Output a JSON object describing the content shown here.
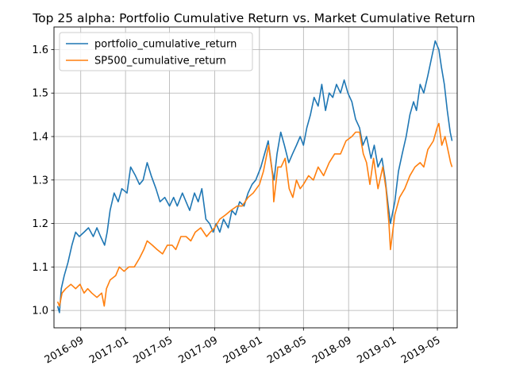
{
  "chart_data": {
    "type": "line",
    "title": "Top 25 alpha: Portfolio Cumulative Return vs. Market Cumulative Return",
    "xlabel": "",
    "ylabel": "",
    "x_ticks": [
      "2016-09",
      "2017-01",
      "2017-05",
      "2017-09",
      "2018-01",
      "2018-05",
      "2018-09",
      "2019-01",
      "2019-05"
    ],
    "y_ticks": [
      "1.0",
      "1.1",
      "1.2",
      "1.3",
      "1.4",
      "1.5",
      "1.6"
    ],
    "xlim": [
      "2016-06-20",
      "2019-06-24"
    ],
    "ylim": [
      0.96,
      1.652
    ],
    "grid": true,
    "legend_position": "upper-left",
    "series": [
      {
        "name": "portfolio_cumulative_return",
        "color": "#1f77b4",
        "points": [
          [
            "2016-06-30",
            1.01
          ],
          [
            "2016-07-05",
            0.995
          ],
          [
            "2016-07-10",
            1.05
          ],
          [
            "2016-07-18",
            1.08
          ],
          [
            "2016-07-28",
            1.11
          ],
          [
            "2016-08-08",
            1.15
          ],
          [
            "2016-08-18",
            1.18
          ],
          [
            "2016-08-28",
            1.17
          ],
          [
            "2016-09-10",
            1.18
          ],
          [
            "2016-09-22",
            1.19
          ],
          [
            "2016-10-05",
            1.17
          ],
          [
            "2016-10-15",
            1.19
          ],
          [
            "2016-10-25",
            1.17
          ],
          [
            "2016-11-05",
            1.15
          ],
          [
            "2016-11-12",
            1.18
          ],
          [
            "2016-11-20",
            1.23
          ],
          [
            "2016-12-01",
            1.27
          ],
          [
            "2016-12-12",
            1.25
          ],
          [
            "2016-12-22",
            1.28
          ],
          [
            "2017-01-05",
            1.27
          ],
          [
            "2017-01-15",
            1.33
          ],
          [
            "2017-01-28",
            1.31
          ],
          [
            "2017-02-08",
            1.29
          ],
          [
            "2017-02-18",
            1.3
          ],
          [
            "2017-03-01",
            1.34
          ],
          [
            "2017-03-12",
            1.31
          ],
          [
            "2017-03-25",
            1.28
          ],
          [
            "2017-04-05",
            1.25
          ],
          [
            "2017-04-18",
            1.26
          ],
          [
            "2017-05-01",
            1.24
          ],
          [
            "2017-05-12",
            1.26
          ],
          [
            "2017-05-22",
            1.24
          ],
          [
            "2017-06-05",
            1.27
          ],
          [
            "2017-06-15",
            1.25
          ],
          [
            "2017-06-25",
            1.23
          ],
          [
            "2017-07-08",
            1.27
          ],
          [
            "2017-07-18",
            1.25
          ],
          [
            "2017-07-28",
            1.28
          ],
          [
            "2017-08-08",
            1.21
          ],
          [
            "2017-08-18",
            1.2
          ],
          [
            "2017-08-28",
            1.18
          ],
          [
            "2017-09-05",
            1.2
          ],
          [
            "2017-09-15",
            1.18
          ],
          [
            "2017-09-25",
            1.21
          ],
          [
            "2017-10-08",
            1.19
          ],
          [
            "2017-10-18",
            1.23
          ],
          [
            "2017-10-28",
            1.22
          ],
          [
            "2017-11-08",
            1.25
          ],
          [
            "2017-11-20",
            1.24
          ],
          [
            "2017-12-01",
            1.27
          ],
          [
            "2017-12-12",
            1.29
          ],
          [
            "2017-12-22",
            1.3
          ],
          [
            "2018-01-05",
            1.33
          ],
          [
            "2018-01-15",
            1.36
          ],
          [
            "2018-01-25",
            1.39
          ],
          [
            "2018-02-05",
            1.32
          ],
          [
            "2018-02-10",
            1.3
          ],
          [
            "2018-02-18",
            1.36
          ],
          [
            "2018-02-28",
            1.41
          ],
          [
            "2018-03-10",
            1.38
          ],
          [
            "2018-03-22",
            1.34
          ],
          [
            "2018-04-01",
            1.36
          ],
          [
            "2018-04-12",
            1.38
          ],
          [
            "2018-04-22",
            1.4
          ],
          [
            "2018-05-01",
            1.38
          ],
          [
            "2018-05-10",
            1.42
          ],
          [
            "2018-05-20",
            1.45
          ],
          [
            "2018-05-30",
            1.49
          ],
          [
            "2018-06-10",
            1.47
          ],
          [
            "2018-06-20",
            1.52
          ],
          [
            "2018-06-30",
            1.46
          ],
          [
            "2018-07-10",
            1.5
          ],
          [
            "2018-07-20",
            1.49
          ],
          [
            "2018-07-30",
            1.52
          ],
          [
            "2018-08-10",
            1.5
          ],
          [
            "2018-08-20",
            1.53
          ],
          [
            "2018-08-30",
            1.5
          ],
          [
            "2018-09-10",
            1.48
          ],
          [
            "2018-09-20",
            1.44
          ],
          [
            "2018-10-01",
            1.42
          ],
          [
            "2018-10-10",
            1.38
          ],
          [
            "2018-10-20",
            1.4
          ],
          [
            "2018-11-01",
            1.35
          ],
          [
            "2018-11-10",
            1.38
          ],
          [
            "2018-11-20",
            1.33
          ],
          [
            "2018-12-01",
            1.35
          ],
          [
            "2018-12-10",
            1.3
          ],
          [
            "2018-12-18",
            1.24
          ],
          [
            "2018-12-24",
            1.2
          ],
          [
            "2019-01-05",
            1.25
          ],
          [
            "2019-01-15",
            1.32
          ],
          [
            "2019-01-25",
            1.36
          ],
          [
            "2019-02-05",
            1.4
          ],
          [
            "2019-02-15",
            1.45
          ],
          [
            "2019-02-25",
            1.48
          ],
          [
            "2019-03-05",
            1.46
          ],
          [
            "2019-03-15",
            1.52
          ],
          [
            "2019-03-25",
            1.5
          ],
          [
            "2019-04-05",
            1.54
          ],
          [
            "2019-04-15",
            1.58
          ],
          [
            "2019-04-25",
            1.62
          ],
          [
            "2019-05-05",
            1.6
          ],
          [
            "2019-05-12",
            1.56
          ],
          [
            "2019-05-20",
            1.52
          ],
          [
            "2019-05-28",
            1.46
          ],
          [
            "2019-06-05",
            1.41
          ],
          [
            "2019-06-10",
            1.39
          ]
        ]
      },
      {
        "name": "SP500_cumulative_return",
        "color": "#ff7f0e",
        "points": [
          [
            "2016-06-30",
            1.02
          ],
          [
            "2016-07-05",
            1.01
          ],
          [
            "2016-07-12",
            1.04
          ],
          [
            "2016-07-22",
            1.05
          ],
          [
            "2016-08-05",
            1.06
          ],
          [
            "2016-08-18",
            1.05
          ],
          [
            "2016-08-30",
            1.06
          ],
          [
            "2016-09-10",
            1.04
          ],
          [
            "2016-09-20",
            1.05
          ],
          [
            "2016-10-01",
            1.04
          ],
          [
            "2016-10-15",
            1.03
          ],
          [
            "2016-10-28",
            1.04
          ],
          [
            "2016-11-04",
            1.01
          ],
          [
            "2016-11-10",
            1.05
          ],
          [
            "2016-11-20",
            1.07
          ],
          [
            "2016-12-05",
            1.08
          ],
          [
            "2016-12-15",
            1.1
          ],
          [
            "2016-12-28",
            1.09
          ],
          [
            "2017-01-10",
            1.1
          ],
          [
            "2017-01-25",
            1.1
          ],
          [
            "2017-02-08",
            1.12
          ],
          [
            "2017-02-20",
            1.14
          ],
          [
            "2017-03-01",
            1.16
          ],
          [
            "2017-03-15",
            1.15
          ],
          [
            "2017-03-28",
            1.14
          ],
          [
            "2017-04-12",
            1.13
          ],
          [
            "2017-04-25",
            1.15
          ],
          [
            "2017-05-08",
            1.15
          ],
          [
            "2017-05-18",
            1.14
          ],
          [
            "2017-06-01",
            1.17
          ],
          [
            "2017-06-15",
            1.17
          ],
          [
            "2017-06-28",
            1.16
          ],
          [
            "2017-07-10",
            1.18
          ],
          [
            "2017-07-25",
            1.19
          ],
          [
            "2017-08-10",
            1.17
          ],
          [
            "2017-08-20",
            1.18
          ],
          [
            "2017-09-01",
            1.19
          ],
          [
            "2017-09-15",
            1.21
          ],
          [
            "2017-10-01",
            1.22
          ],
          [
            "2017-10-15",
            1.23
          ],
          [
            "2017-11-01",
            1.24
          ],
          [
            "2017-11-15",
            1.24
          ],
          [
            "2017-12-01",
            1.26
          ],
          [
            "2017-12-15",
            1.27
          ],
          [
            "2018-01-01",
            1.29
          ],
          [
            "2018-01-12",
            1.32
          ],
          [
            "2018-01-26",
            1.38
          ],
          [
            "2018-02-06",
            1.31
          ],
          [
            "2018-02-09",
            1.25
          ],
          [
            "2018-02-20",
            1.33
          ],
          [
            "2018-03-01",
            1.33
          ],
          [
            "2018-03-12",
            1.35
          ],
          [
            "2018-03-23",
            1.28
          ],
          [
            "2018-04-02",
            1.26
          ],
          [
            "2018-04-12",
            1.3
          ],
          [
            "2018-04-22",
            1.28
          ],
          [
            "2018-05-01",
            1.29
          ],
          [
            "2018-05-15",
            1.31
          ],
          [
            "2018-05-28",
            1.3
          ],
          [
            "2018-06-10",
            1.33
          ],
          [
            "2018-06-25",
            1.31
          ],
          [
            "2018-07-10",
            1.34
          ],
          [
            "2018-07-25",
            1.36
          ],
          [
            "2018-08-10",
            1.36
          ],
          [
            "2018-08-25",
            1.39
          ],
          [
            "2018-09-10",
            1.4
          ],
          [
            "2018-09-20",
            1.41
          ],
          [
            "2018-10-01",
            1.41
          ],
          [
            "2018-10-11",
            1.36
          ],
          [
            "2018-10-20",
            1.34
          ],
          [
            "2018-10-29",
            1.29
          ],
          [
            "2018-11-08",
            1.35
          ],
          [
            "2018-11-20",
            1.28
          ],
          [
            "2018-12-03",
            1.33
          ],
          [
            "2018-12-12",
            1.28
          ],
          [
            "2018-12-20",
            1.2
          ],
          [
            "2018-12-24",
            1.14
          ],
          [
            "2019-01-05",
            1.22
          ],
          [
            "2019-01-18",
            1.26
          ],
          [
            "2019-02-01",
            1.28
          ],
          [
            "2019-02-15",
            1.31
          ],
          [
            "2019-03-01",
            1.33
          ],
          [
            "2019-03-15",
            1.34
          ],
          [
            "2019-03-25",
            1.33
          ],
          [
            "2019-04-05",
            1.37
          ],
          [
            "2019-04-20",
            1.39
          ],
          [
            "2019-04-30",
            1.42
          ],
          [
            "2019-05-05",
            1.43
          ],
          [
            "2019-05-13",
            1.38
          ],
          [
            "2019-05-22",
            1.4
          ],
          [
            "2019-06-01",
            1.36
          ],
          [
            "2019-06-06",
            1.34
          ],
          [
            "2019-06-10",
            1.33
          ]
        ]
      }
    ]
  }
}
